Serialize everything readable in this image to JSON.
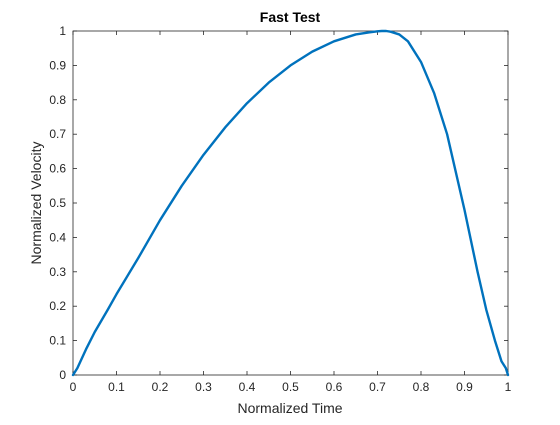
{
  "chart_data": {
    "type": "line",
    "title": "Fast Test",
    "xlabel": "Normalized Time",
    "ylabel": "Normalized Velocity",
    "xlim": [
      0,
      1
    ],
    "ylim": [
      0,
      1
    ],
    "grid": false,
    "legend": "none",
    "x_ticks": [
      "0",
      "0.1",
      "0.2",
      "0.3",
      "0.4",
      "0.5",
      "0.6",
      "0.7",
      "0.8",
      "0.9",
      "1"
    ],
    "y_ticks": [
      "0",
      "0.1",
      "0.2",
      "0.3",
      "0.4",
      "0.5",
      "0.6",
      "0.7",
      "0.8",
      "0.9",
      "1"
    ],
    "series": [
      {
        "color": "#0072BD",
        "x": [
          0,
          0.01,
          0.03,
          0.05,
          0.08,
          0.1,
          0.15,
          0.2,
          0.25,
          0.3,
          0.35,
          0.4,
          0.45,
          0.5,
          0.55,
          0.6,
          0.65,
          0.68,
          0.7,
          0.71,
          0.72,
          0.73,
          0.75,
          0.77,
          0.8,
          0.83,
          0.86,
          0.9,
          0.93,
          0.95,
          0.97,
          0.985,
          0.995,
          1.0
        ],
        "y": [
          0,
          0.02,
          0.075,
          0.125,
          0.19,
          0.235,
          0.34,
          0.45,
          0.55,
          0.64,
          0.72,
          0.79,
          0.85,
          0.9,
          0.94,
          0.97,
          0.99,
          0.996,
          0.999,
          1.0,
          1.0,
          0.998,
          0.99,
          0.97,
          0.91,
          0.82,
          0.7,
          0.48,
          0.3,
          0.19,
          0.1,
          0.04,
          0.02,
          0.0
        ]
      }
    ]
  }
}
